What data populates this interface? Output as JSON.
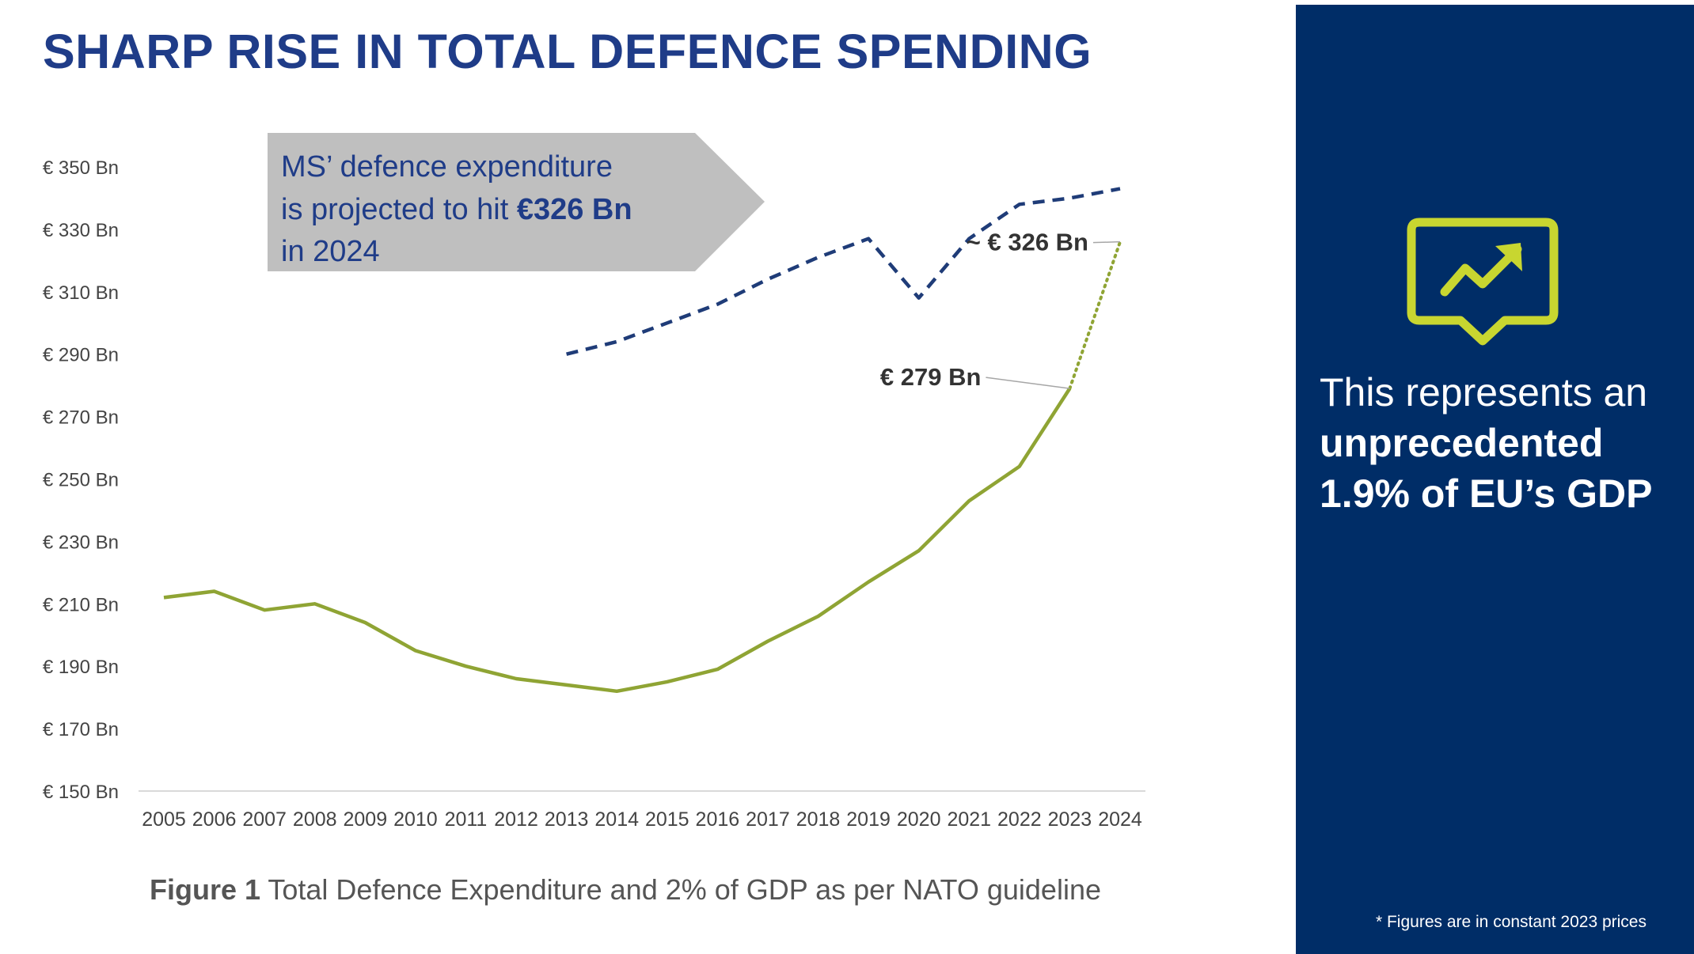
{
  "title": "SHARP RISE IN TOTAL DEFENCE SPENDING",
  "callout": {
    "line1": "MS’ defence expenditure",
    "line2_pre": "is projected to hit ",
    "line2_bold": "€326 Bn",
    "line3": "in 2024"
  },
  "chart_data": {
    "type": "line",
    "x": [
      2005,
      2006,
      2007,
      2008,
      2009,
      2010,
      2011,
      2012,
      2013,
      2014,
      2015,
      2016,
      2017,
      2018,
      2019,
      2020,
      2021,
      2022,
      2023,
      2024
    ],
    "x_tick_labels": [
      "2005",
      "2006",
      "2007",
      "2008",
      "2009",
      "2010",
      "2011",
      "2012",
      "2013",
      "2014",
      "2015",
      "2016",
      "2017",
      "2018",
      "2019",
      "2020",
      "2021",
      "2022",
      "2023",
      "2024"
    ],
    "y_tick_labels": [
      "€ 350 Bn",
      "€ 330 Bn",
      "€ 310 Bn",
      "€ 290 Bn",
      "€ 270 Bn",
      "€ 250 Bn",
      "€ 230 Bn",
      "€ 210 Bn",
      "€ 190 Bn",
      "€ 170 Bn",
      "€ 150 Bn"
    ],
    "y_ticks": [
      350,
      330,
      310,
      290,
      270,
      250,
      230,
      210,
      190,
      170,
      150
    ],
    "ylim": [
      150,
      350
    ],
    "series": [
      {
        "name": "Total Defence Expenditure",
        "color": "#8fa434",
        "style": "solid",
        "x": [
          2005,
          2006,
          2007,
          2008,
          2009,
          2010,
          2011,
          2012,
          2013,
          2014,
          2015,
          2016,
          2017,
          2018,
          2019,
          2020,
          2021,
          2022,
          2023
        ],
        "values": [
          212,
          214,
          208,
          210,
          204,
          195,
          190,
          186,
          184,
          182,
          185,
          189,
          198,
          206,
          217,
          227,
          243,
          254,
          279
        ]
      },
      {
        "name": "Total Defence Expenditure (projected)",
        "color": "#8fa434",
        "style": "dotted",
        "x": [
          2023,
          2024
        ],
        "values": [
          279,
          326
        ]
      },
      {
        "name": "2% of GDP as per NATO guideline",
        "color": "#1f3c78",
        "style": "dashed",
        "x": [
          2013,
          2014,
          2015,
          2016,
          2017,
          2018,
          2019,
          2020,
          2021,
          2022,
          2023,
          2024
        ],
        "values": [
          290,
          294,
          300,
          306,
          314,
          321,
          327,
          308,
          327,
          338,
          340,
          343
        ]
      }
    ],
    "annotations": [
      {
        "text": "€ 279 Bn",
        "x": 2023,
        "y": 279
      },
      {
        "text": "~ € 326 Bn",
        "x": 2024,
        "y": 326
      }
    ],
    "caption_bold": "Figure 1",
    "caption": " Total Defence Expenditure and 2% of GDP as per NATO guideline"
  },
  "side_panel": {
    "icon": "trend-up-chat-icon",
    "background": "#002d67",
    "accent": "#c8d630",
    "text_line1": "This represents an",
    "text_bold1": "unprecedented",
    "text_bold2": "1.9% of EU’s GDP",
    "footnote": "* Figures are in constant 2023 prices"
  }
}
